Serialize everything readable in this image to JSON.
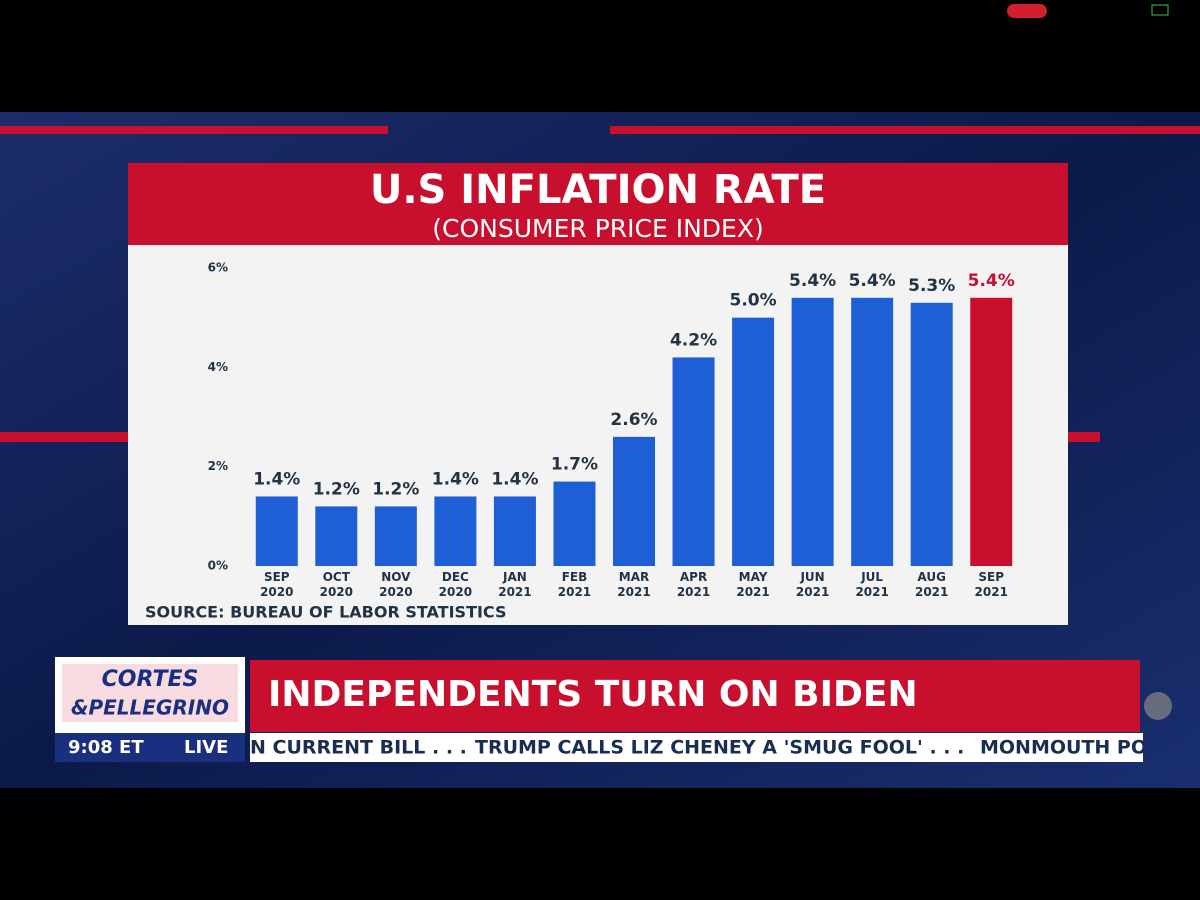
{
  "chart_data": {
    "type": "bar",
    "title": "U.S INFLATION RATE",
    "subtitle": "(CONSUMER PRICE INDEX)",
    "source": "SOURCE: BUREAU OF LABOR STATISTICS",
    "categories": [
      "SEP 2020",
      "OCT 2020",
      "NOV 2020",
      "DEC 2020",
      "JAN 2021",
      "FEB 2021",
      "MAR 2021",
      "APR 2021",
      "MAY 2021",
      "JUN 2021",
      "JUL 2021",
      "AUG 2021",
      "SEP 2021"
    ],
    "values": [
      1.4,
      1.2,
      1.2,
      1.4,
      1.4,
      1.7,
      2.6,
      4.2,
      5.0,
      5.4,
      5.4,
      5.3,
      5.4
    ],
    "value_labels": [
      "1.4%",
      "1.2%",
      "1.2%",
      "1.4%",
      "1.4%",
      "1.7%",
      "2.6%",
      "4.2%",
      "5.0%",
      "5.4%",
      "5.4%",
      "5.3%",
      "5.4%"
    ],
    "colors": [
      "#1f5fd6",
      "#1f5fd6",
      "#1f5fd6",
      "#1f5fd6",
      "#1f5fd6",
      "#1f5fd6",
      "#1f5fd6",
      "#1f5fd6",
      "#1f5fd6",
      "#1f5fd6",
      "#1f5fd6",
      "#1f5fd6",
      "#c8102e"
    ],
    "ylim": [
      0,
      6
    ],
    "yticks": [
      {
        "value": 0,
        "label": "0%"
      },
      {
        "value": 2,
        "label": "2%"
      },
      {
        "value": 4,
        "label": "4%"
      },
      {
        "value": 6,
        "label": "6%"
      }
    ],
    "grid": false
  },
  "broadcast": {
    "show_name_1": "CORTES",
    "show_name_2": "&PELLEGRINO",
    "time": "9:08 ET",
    "status": "LIVE",
    "headline": "INDEPENDENTS TURN ON BIDEN",
    "ticker": [
      "N CURRENT BILL . . .",
      "TRUMP CALLS LIZ CHENEY A 'SMUG FOOL' . . .",
      "MONMOUTH PO"
    ]
  }
}
